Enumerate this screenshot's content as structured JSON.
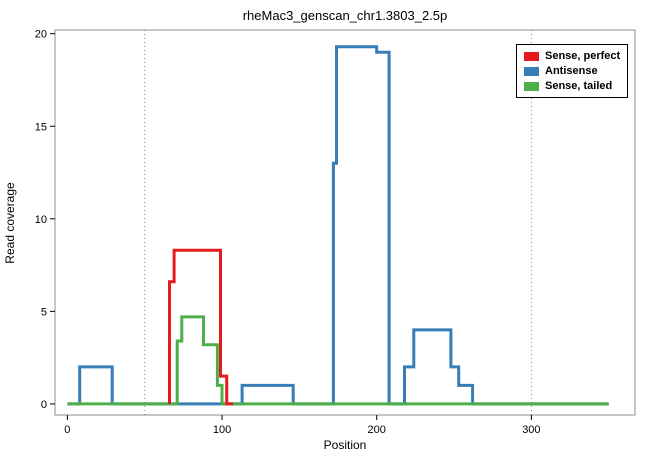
{
  "chart_data": {
    "type": "line",
    "style": "step",
    "title": "rheMac3_genscan_chr1.3803_2.5p",
    "xlabel": "Position",
    "ylabel": "Read coverage",
    "xticks": [
      0,
      100,
      200,
      300
    ],
    "yticks": [
      0,
      5,
      10,
      15,
      20
    ],
    "xlim": [
      -8,
      367
    ],
    "ylim": [
      -0.6,
      20.2
    ],
    "grid": "off",
    "vlines": [
      50,
      300
    ],
    "series": [
      {
        "name": "Antisense",
        "color": "#377eb8",
        "points": [
          [
            0,
            0
          ],
          [
            8,
            0
          ],
          [
            8,
            2
          ],
          [
            29,
            2
          ],
          [
            29,
            0
          ],
          [
            113,
            0
          ],
          [
            113,
            1
          ],
          [
            146,
            1
          ],
          [
            146,
            0
          ],
          [
            172,
            0
          ],
          [
            172,
            13
          ],
          [
            174,
            13
          ],
          [
            174,
            19.3
          ],
          [
            200,
            19.3
          ],
          [
            200,
            19
          ],
          [
            208,
            19
          ],
          [
            208,
            0
          ],
          [
            218,
            0
          ],
          [
            218,
            2
          ],
          [
            224,
            2
          ],
          [
            224,
            4
          ],
          [
            248,
            4
          ],
          [
            248,
            2
          ],
          [
            253,
            2
          ],
          [
            253,
            1
          ],
          [
            262,
            1
          ],
          [
            262,
            0
          ],
          [
            350,
            0
          ]
        ]
      },
      {
        "name": "Sense, tailed",
        "color": "#4daf4a",
        "points": [
          [
            0,
            0
          ],
          [
            71,
            0
          ],
          [
            71,
            3.4
          ],
          [
            74,
            3.4
          ],
          [
            74,
            4.7
          ],
          [
            88,
            4.7
          ],
          [
            88,
            3.2
          ],
          [
            97,
            3.2
          ],
          [
            97,
            1
          ],
          [
            100,
            1
          ],
          [
            100,
            0
          ],
          [
            350,
            0
          ]
        ]
      },
      {
        "name": "Sense, perfect",
        "color": "#e41a1c",
        "points": [
          [
            66,
            0
          ],
          [
            66,
            6.6
          ],
          [
            69,
            6.6
          ],
          [
            69,
            8.3
          ],
          [
            99,
            8.3
          ],
          [
            99,
            1.5
          ],
          [
            103,
            1.5
          ],
          [
            103,
            0
          ],
          [
            107,
            0
          ]
        ]
      }
    ],
    "legend": {
      "position": "top-right",
      "items": [
        {
          "label": "Sense, perfect",
          "color": "#e41a1c"
        },
        {
          "label": "Antisense",
          "color": "#377eb8"
        },
        {
          "label": "Sense, tailed",
          "color": "#4daf4a"
        }
      ]
    }
  }
}
